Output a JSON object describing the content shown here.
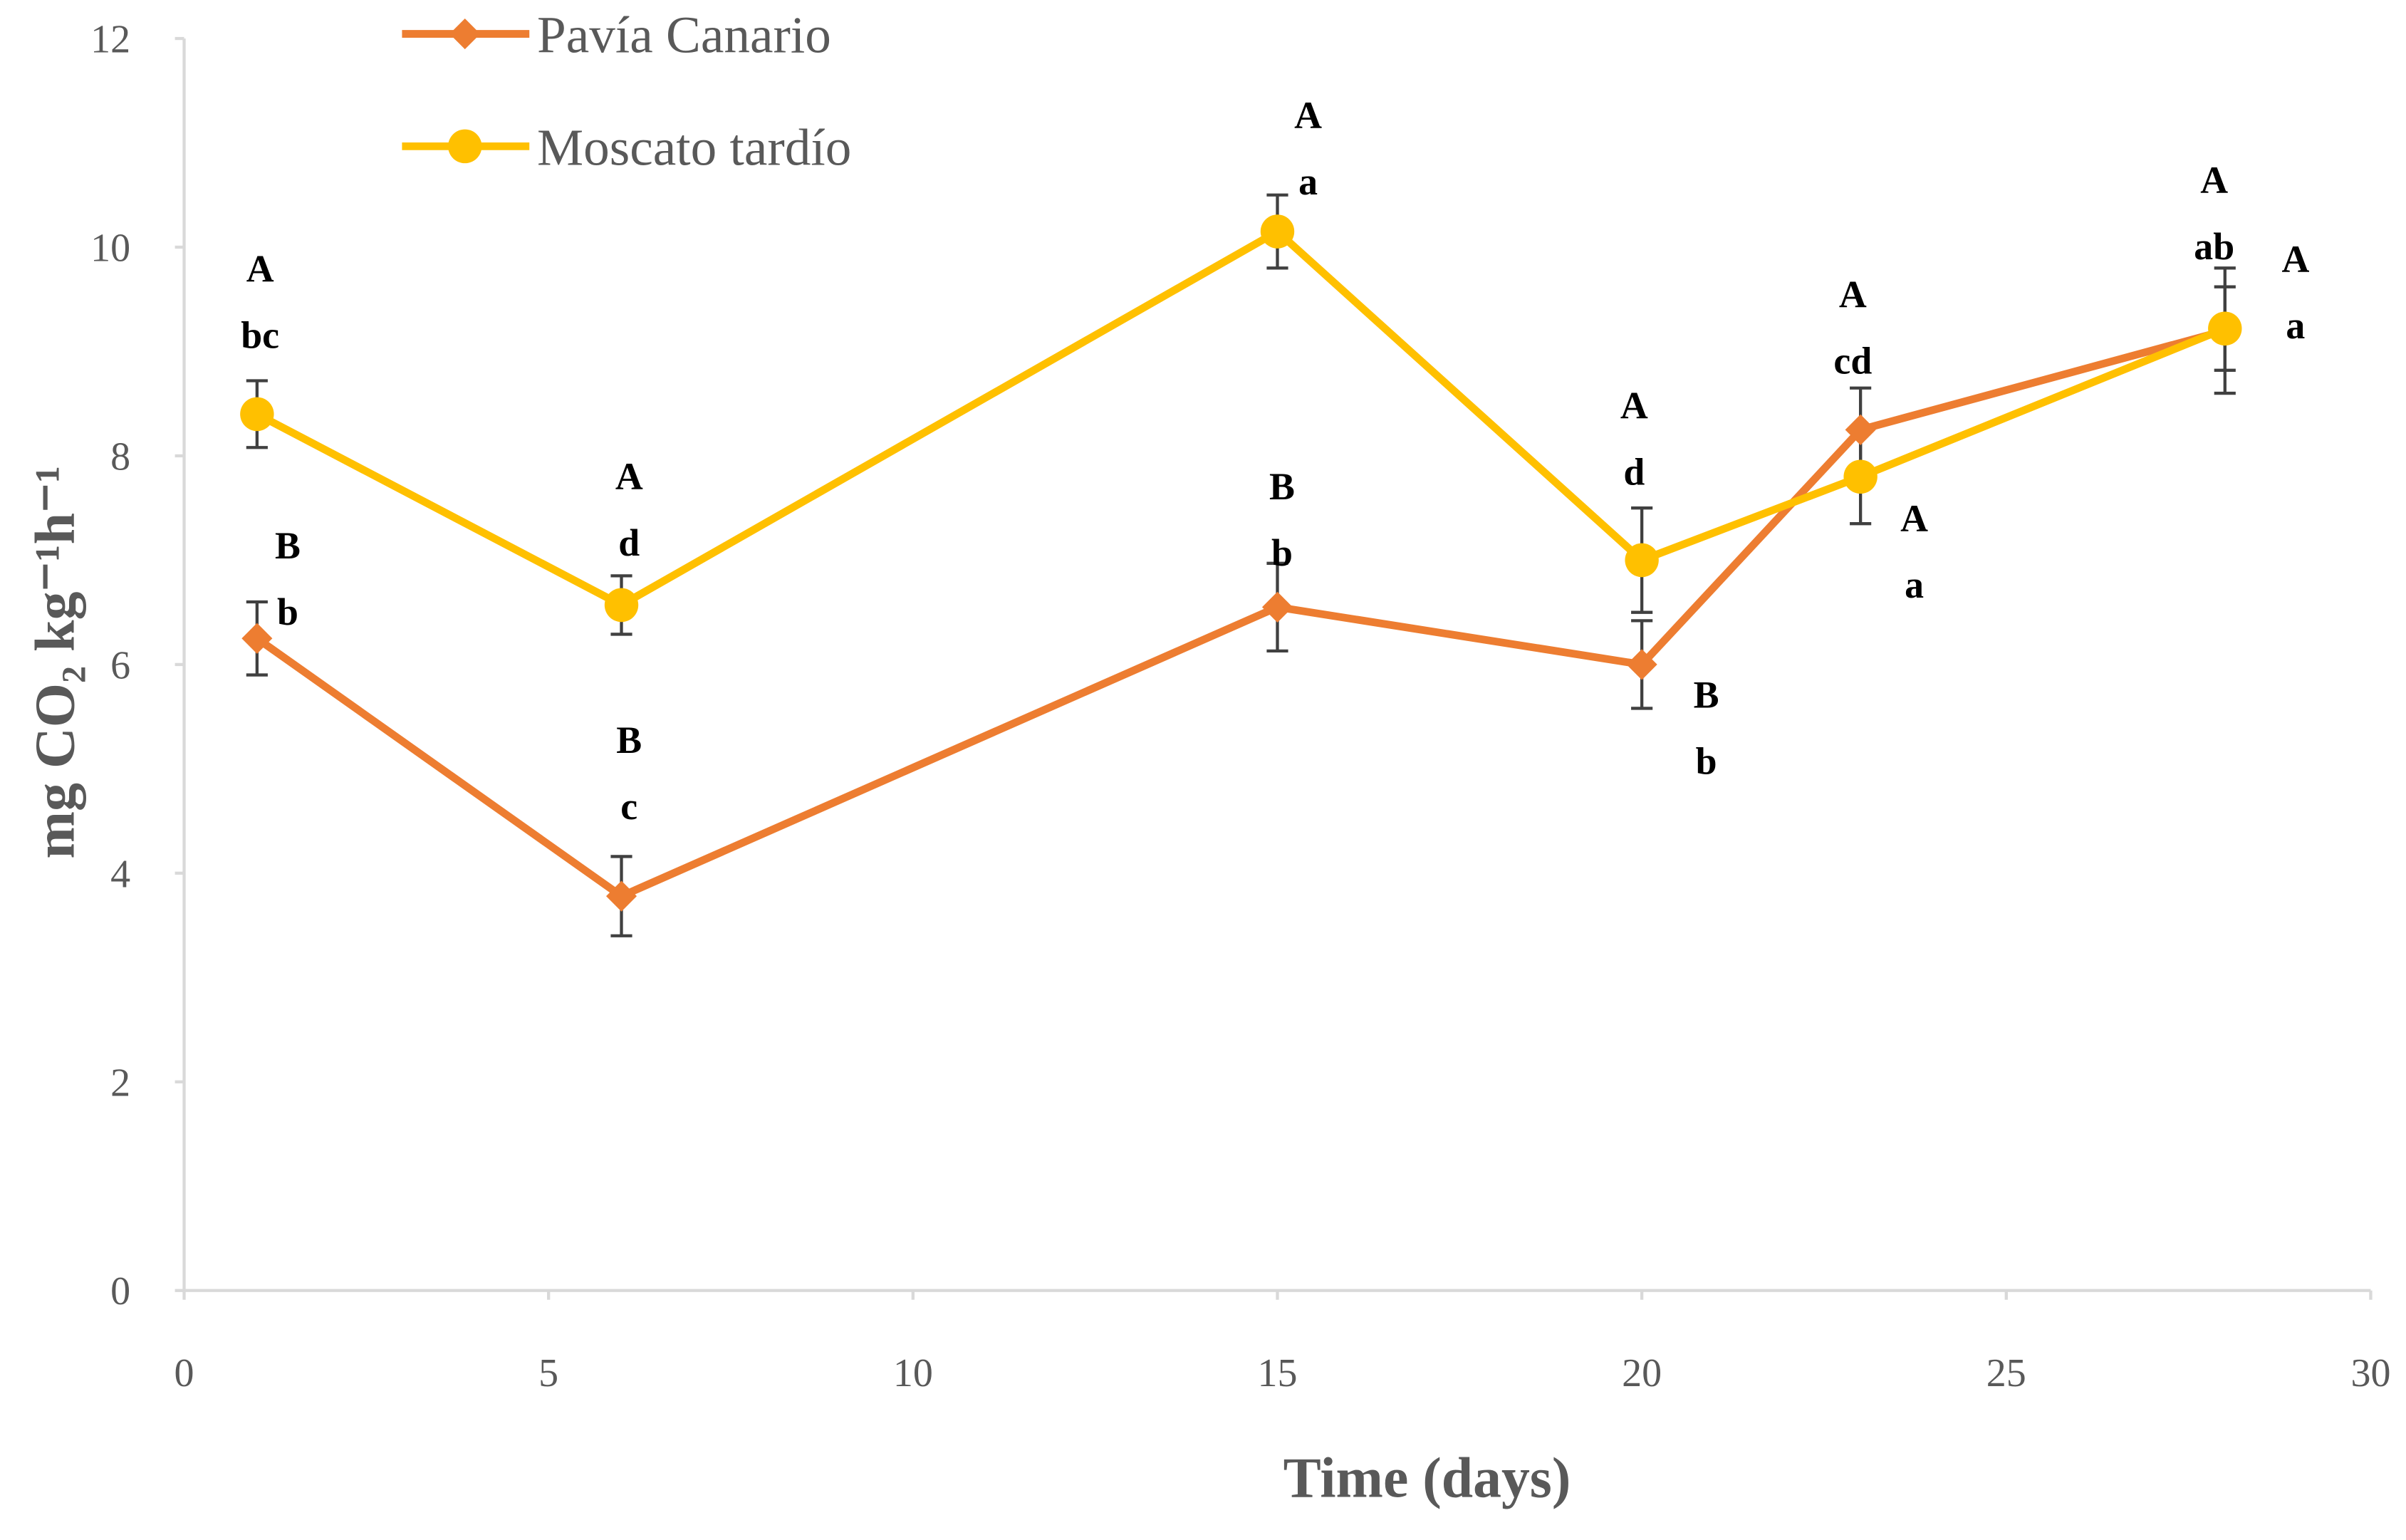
{
  "chart_data": {
    "type": "line",
    "y_label": "mg CO₂ kg⁻¹h⁻¹",
    "x_label": "Time (days)",
    "x": [
      1,
      6,
      15,
      20,
      23,
      28
    ],
    "xlim": [
      0,
      30
    ],
    "xticks": [
      0,
      5,
      10,
      15,
      20,
      25,
      30
    ],
    "ylim": [
      0,
      12
    ],
    "yticks": [
      0,
      2,
      4,
      6,
      8,
      10,
      12
    ],
    "grid": false,
    "legend": "top",
    "series": [
      {
        "name": "Pavía Canario",
        "color": "#ED7D31",
        "marker": "diamond",
        "values": [
          6.25,
          3.78,
          6.55,
          6.0,
          8.25,
          9.2
        ],
        "errors": [
          0.35,
          0.38,
          0.42,
          0.42,
          0.4,
          0.6
        ],
        "annotations": [
          [
            "B",
            "b"
          ],
          [
            "B",
            "c"
          ],
          [
            "B",
            "b"
          ],
          [
            "B",
            "b"
          ],
          [
            "A",
            "a"
          ],
          [
            "A",
            "a"
          ]
        ]
      },
      {
        "name": "Moscato tardío",
        "color": "#FFC000",
        "marker": "circle",
        "values": [
          8.4,
          6.57,
          10.15,
          7.0,
          7.8,
          9.22
        ],
        "errors": [
          0.32,
          0.28,
          0.35,
          0.5,
          0.45,
          0.4
        ],
        "annotations": [
          [
            "A",
            "bc"
          ],
          [
            "A",
            "d"
          ],
          [
            "A",
            "a"
          ],
          [
            "A",
            "d"
          ],
          [
            "A",
            "cd"
          ],
          [
            "A",
            "ab"
          ]
        ]
      }
    ]
  }
}
